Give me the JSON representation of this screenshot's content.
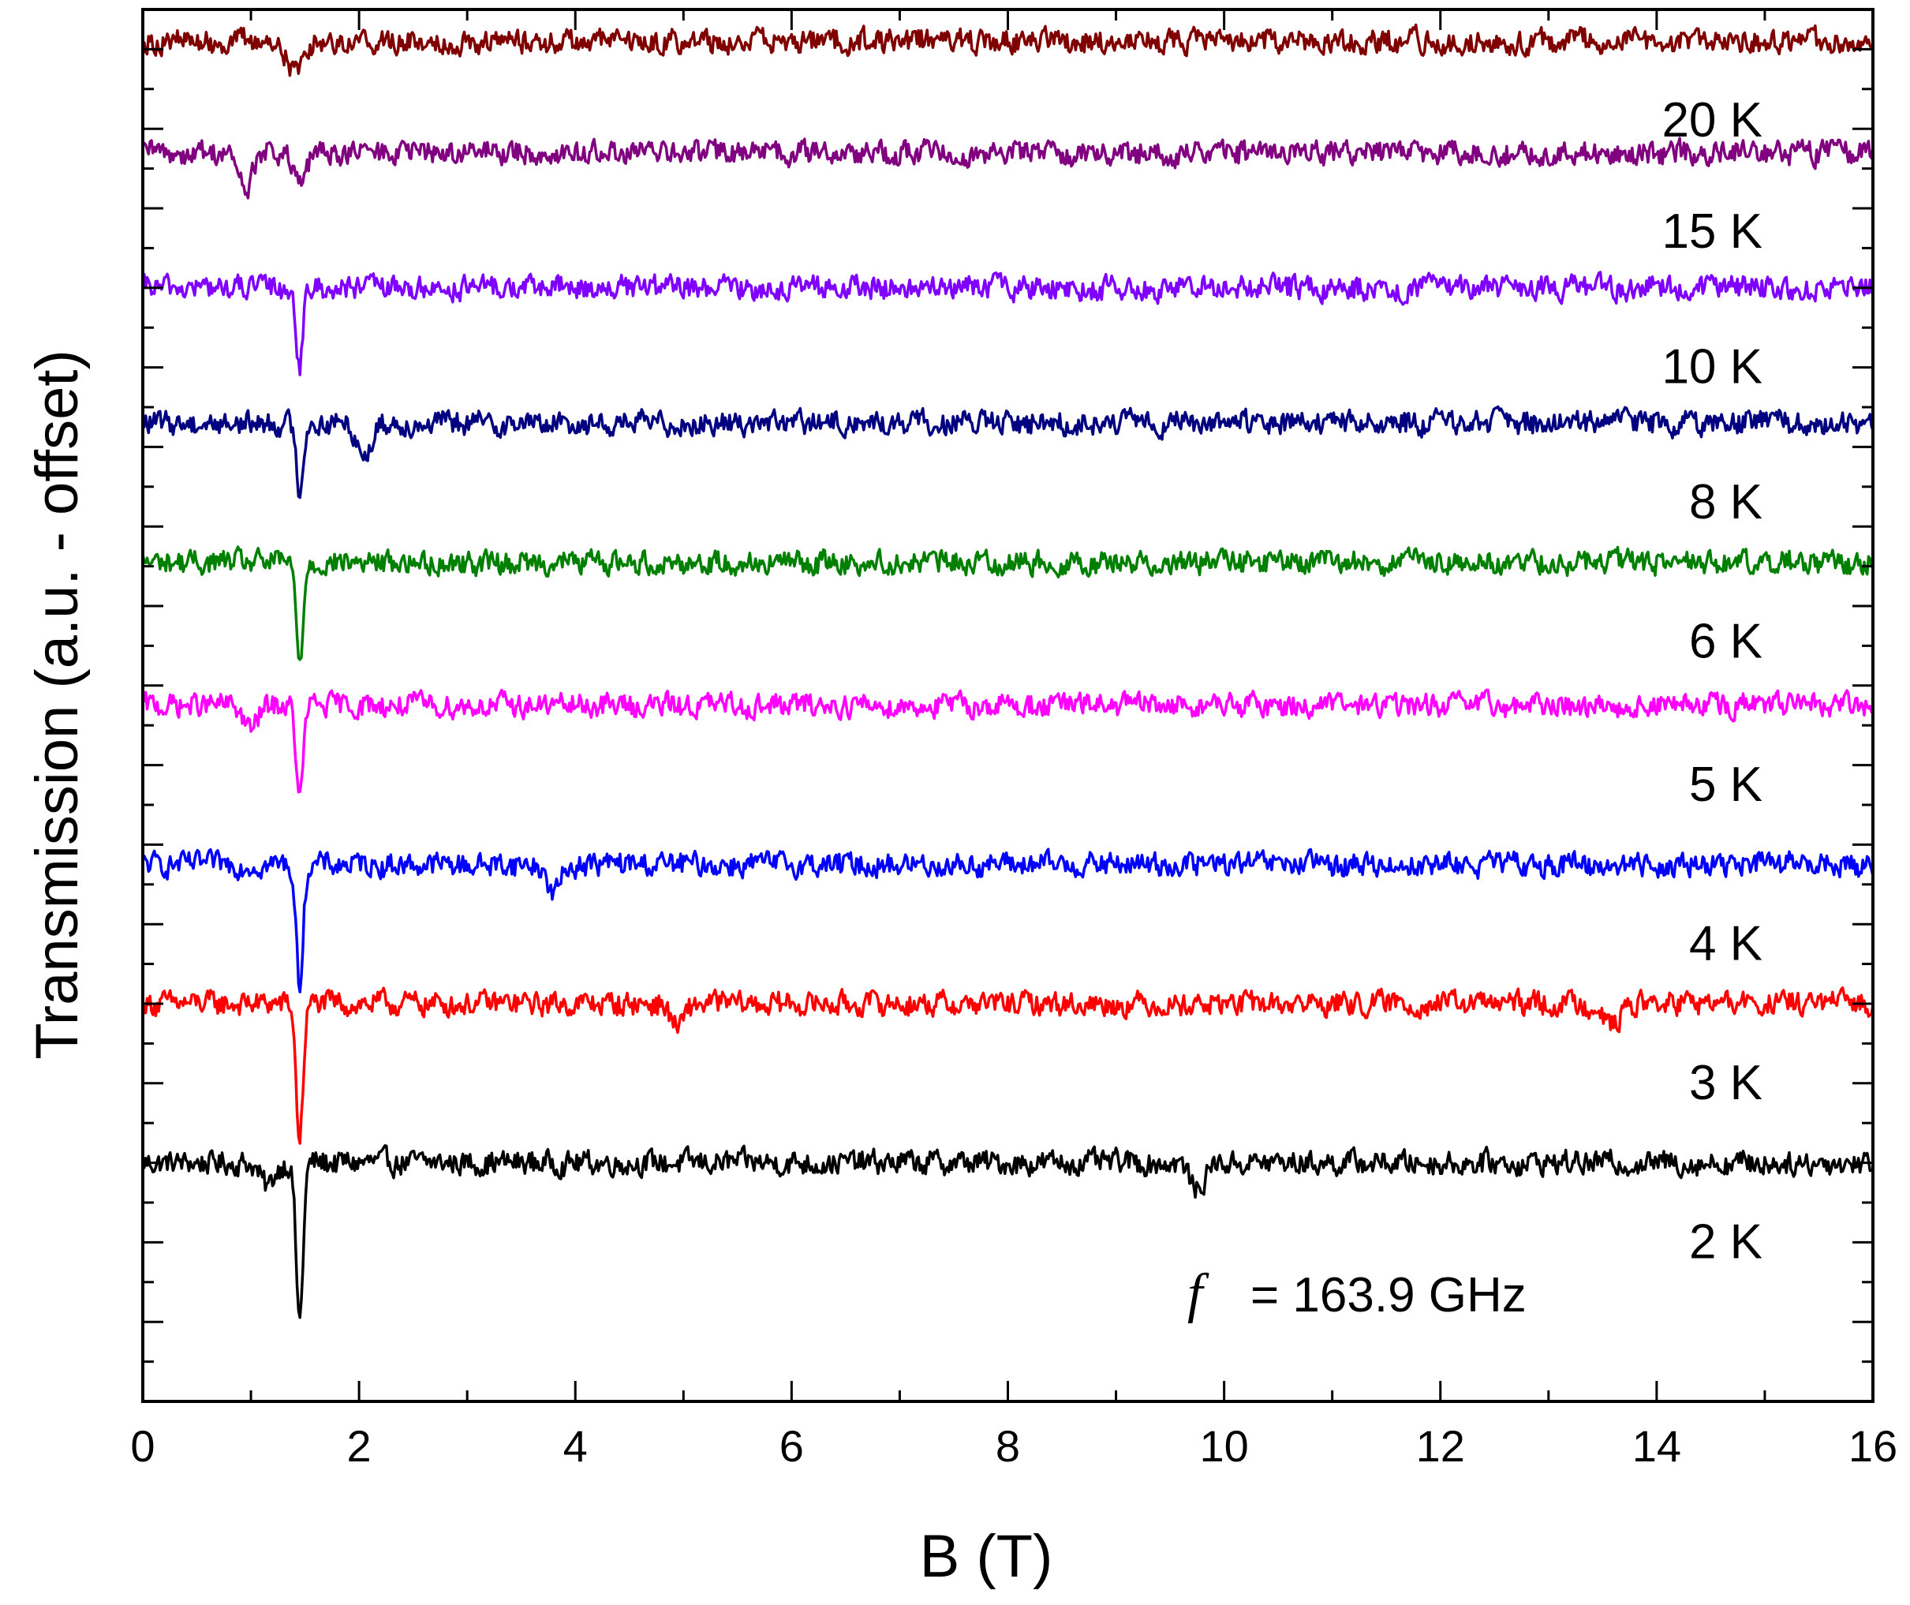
{
  "chart_data": {
    "type": "line",
    "title": "",
    "xlabel": "B (T)",
    "ylabel": "Transmission (a.u. - offset)",
    "xlim": [
      0,
      16
    ],
    "xticks": [
      "0",
      "2",
      "4",
      "6",
      "8",
      "10",
      "12",
      "14",
      "16"
    ],
    "xtick_values": [
      0,
      2,
      4,
      6,
      8,
      10,
      12,
      14,
      16
    ],
    "ylim": [
      0,
      17.5
    ],
    "y_ticks_labeled": false,
    "annotation": {
      "symbol": "f",
      "text": "= 163.9 GHz"
    },
    "legend": "inline-labels-right",
    "series": [
      {
        "name": "2 K",
        "color": "#000000",
        "baseline": 3.0,
        "features": [
          {
            "x": 1.45,
            "depth": 2.0
          },
          {
            "x": 1.15,
            "depth": 0.3
          },
          {
            "x": 9.75,
            "depth": 0.35
          }
        ]
      },
      {
        "name": "3 K",
        "color": "#ff0000",
        "baseline": 5.0,
        "features": [
          {
            "x": 1.45,
            "depth": 1.7
          },
          {
            "x": 4.95,
            "depth": 0.3
          },
          {
            "x": 13.6,
            "depth": 0.3
          }
        ]
      },
      {
        "name": "4 K",
        "color": "#0000ff",
        "baseline": 6.75,
        "features": [
          {
            "x": 1.45,
            "depth": 1.5
          },
          {
            "x": 3.8,
            "depth": 0.35
          }
        ]
      },
      {
        "name": "5 K",
        "color": "#ff00ff",
        "baseline": 8.75,
        "features": [
          {
            "x": 1.45,
            "depth": 1.2
          },
          {
            "x": 1.0,
            "depth": 0.3
          }
        ]
      },
      {
        "name": "6 K",
        "color": "#008000",
        "baseline": 10.55,
        "features": [
          {
            "x": 1.45,
            "depth": 1.25
          }
        ]
      },
      {
        "name": "8 K",
        "color": "#000080",
        "baseline": 12.3,
        "features": [
          {
            "x": 1.45,
            "depth": 0.85
          },
          {
            "x": 2.05,
            "depth": 0.4
          }
        ]
      },
      {
        "name": "10 K",
        "color": "#8000ff",
        "baseline": 14.0,
        "features": [
          {
            "x": 1.45,
            "depth": 0.95
          }
        ]
      },
      {
        "name": "15 K",
        "color": "#800080",
        "baseline": 15.7,
        "features": [
          {
            "x": 0.95,
            "depth": 0.45
          },
          {
            "x": 1.45,
            "depth": 0.4
          }
        ]
      },
      {
        "name": "20 K",
        "color": "#800000",
        "baseline": 17.1,
        "features": [
          {
            "x": 1.4,
            "depth": 0.4
          }
        ]
      }
    ]
  }
}
